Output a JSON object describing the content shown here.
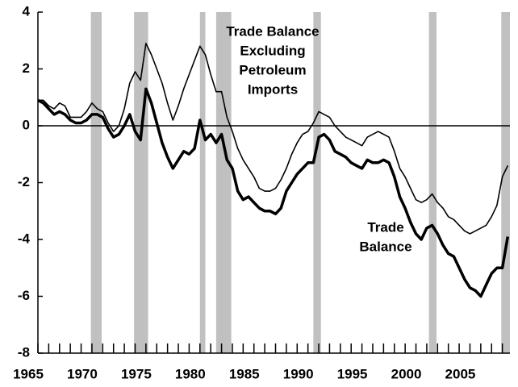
{
  "chart_data": {
    "type": "line",
    "x": [
      1965,
      1965.5,
      1966,
      1966.5,
      1967,
      1967.5,
      1968,
      1968.5,
      1969,
      1969.5,
      1970,
      1970.5,
      1971,
      1971.5,
      1972,
      1972.5,
      1973,
      1973.5,
      1974,
      1974.5,
      1975,
      1975.5,
      1976,
      1976.5,
      1977,
      1977.5,
      1978,
      1978.5,
      1979,
      1979.5,
      1980,
      1980.5,
      1981,
      1981.5,
      1982,
      1982.5,
      1983,
      1983.5,
      1984,
      1984.5,
      1985,
      1985.5,
      1986,
      1986.5,
      1987,
      1987.5,
      1988,
      1988.5,
      1989,
      1989.5,
      1990,
      1990.5,
      1991,
      1991.5,
      1992,
      1992.5,
      1993,
      1993.5,
      1994,
      1994.5,
      1995,
      1995.5,
      1996,
      1996.5,
      1997,
      1997.5,
      1998,
      1998.5,
      1999,
      1999.5,
      2000,
      2000.5,
      2001,
      2001.5,
      2002,
      2002.5,
      2003,
      2003.5,
      2004,
      2004.5,
      2005,
      2005.5,
      2006,
      2006.5,
      2007,
      2007.5,
      2008,
      2008.5
    ],
    "series": [
      {
        "name": "Trade Balance Excluding Petroleum Imports",
        "color": "#000000",
        "width": 1.6,
        "values": [
          0.9,
          0.9,
          0.7,
          0.6,
          0.8,
          0.7,
          0.3,
          0.3,
          0.3,
          0.5,
          0.8,
          0.6,
          0.5,
          0.1,
          -0.2,
          0,
          0.6,
          1.5,
          1.9,
          1.6,
          2.9,
          2.5,
          2.0,
          1.5,
          0.8,
          0.2,
          0.7,
          1.3,
          1.8,
          2.3,
          2.8,
          2.5,
          1.8,
          1.2,
          1.2,
          0.3,
          -0.2,
          -0.8,
          -1.2,
          -1.5,
          -1.8,
          -2.2,
          -2.3,
          -2.3,
          -2.2,
          -1.9,
          -1.5,
          -1.0,
          -0.6,
          -0.3,
          -0.2,
          0.1,
          0.5,
          0.4,
          0.3,
          0,
          -0.2,
          -0.4,
          -0.5,
          -0.6,
          -0.7,
          -0.4,
          -0.3,
          -0.2,
          -0.3,
          -0.4,
          -0.9,
          -1.5,
          -1.8,
          -2.2,
          -2.6,
          -2.7,
          -2.6,
          -2.4,
          -2.7,
          -2.9,
          -3.2,
          -3.3,
          -3.5,
          -3.7,
          -3.8,
          -3.7,
          -3.6,
          -3.5,
          -3.2,
          -2.8,
          -1.8,
          -1.4
        ]
      },
      {
        "name": "Trade Balance",
        "color": "#000000",
        "width": 3.5,
        "values": [
          0.9,
          0.8,
          0.6,
          0.4,
          0.5,
          0.4,
          0.2,
          0.1,
          0.1,
          0.2,
          0.4,
          0.4,
          0.3,
          -0.1,
          -0.4,
          -0.3,
          0,
          0.4,
          -0.2,
          -0.5,
          1.3,
          0.8,
          0.1,
          -0.6,
          -1.1,
          -1.5,
          -1.2,
          -0.9,
          -1.0,
          -0.8,
          0.2,
          -0.5,
          -0.3,
          -0.6,
          -0.3,
          -1.2,
          -1.5,
          -2.3,
          -2.6,
          -2.5,
          -2.7,
          -2.9,
          -3.0,
          -3.0,
          -3.1,
          -2.9,
          -2.3,
          -2.0,
          -1.7,
          -1.5,
          -1.3,
          -1.3,
          -0.4,
          -0.3,
          -0.5,
          -0.9,
          -1.0,
          -1.1,
          -1.3,
          -1.4,
          -1.5,
          -1.2,
          -1.3,
          -1.3,
          -1.2,
          -1.3,
          -1.8,
          -2.5,
          -2.9,
          -3.4,
          -3.8,
          -4.0,
          -3.6,
          -3.5,
          -3.8,
          -4.2,
          -4.5,
          -4.6,
          -5.0,
          -5.4,
          -5.7,
          -5.8,
          -6.0,
          -5.6,
          -5.2,
          -5.0,
          -5.0,
          -3.9
        ]
      }
    ],
    "annotations": [
      {
        "lines": [
          "Trade Balance",
          "Excluding",
          "Petroleum",
          "Imports"
        ]
      },
      {
        "lines": [
          "Trade",
          "Balance"
        ]
      }
    ],
    "recessions": [
      [
        1969.9,
        1970.9
      ],
      [
        1973.9,
        1975.2
      ],
      [
        1980.0,
        1980.5
      ],
      [
        1981.5,
        1982.9
      ],
      [
        1990.5,
        1991.2
      ],
      [
        2001.2,
        2001.9
      ],
      [
        2007.9,
        2008.7
      ]
    ],
    "recession_color": "#c0c0c0",
    "xlim": [
      1965,
      2008.7
    ],
    "xticks": [
      1965,
      1970,
      1975,
      1980,
      1985,
      1990,
      1995,
      2000,
      2005
    ],
    "minor_xticks": [
      1966,
      1967,
      1968,
      1969,
      1971,
      1972,
      1973,
      1974,
      1976,
      1977,
      1978,
      1979,
      1981,
      1982,
      1983,
      1984,
      1986,
      1987,
      1988,
      1989,
      1991,
      1992,
      1993,
      1994,
      1996,
      1997,
      1998,
      1999,
      2001,
      2002,
      2003,
      2004,
      2006,
      2007,
      2008
    ],
    "ylim": [
      -8,
      4
    ],
    "yticks": [
      -8,
      -6,
      -4,
      -2,
      0,
      2,
      4
    ]
  }
}
